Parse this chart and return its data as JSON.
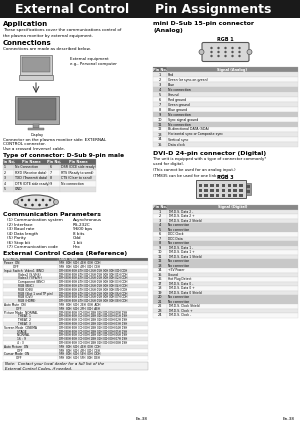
{
  "title_left": "External Control",
  "title_right": "Pin Assignments",
  "bg_color": "#ffffff",
  "header_bg": "#1a1a1a",
  "header_fg": "#ffffff",
  "app_title": "Application",
  "app_text": "These specifications cover the communications control of\nthe plasma monitor by external equipment.",
  "conn_title": "Connections",
  "conn_text": "Connections are made as described below.",
  "conn_label": "External equipment\ne.g., Personal computer",
  "display_label": "Display",
  "connector_note1": "Connector on the plasma monitor side: EXTERNAL",
  "connector_note2": "CONTROL connector.",
  "connector_note3": "Use a crossed (reverse) cable.",
  "connector_title": "Type of connector: D-Sub 9-pin male",
  "dsub_headers": [
    "Pin No.",
    "Pin Name",
    "Pin No.",
    "Pin Name"
  ],
  "dsub_rows": [
    [
      "1",
      "No Connection",
      "6",
      "DSR (DCE side ready)"
    ],
    [
      "2",
      "RXD (Receive data)",
      "7",
      "RTS (Ready to send)"
    ],
    [
      "3",
      "TXD (Transmit data)",
      "8",
      "CTS (Clear to send)"
    ],
    [
      "4",
      "DTR (DTE side ready)",
      "9",
      "No connection"
    ],
    [
      "5",
      "GND",
      "",
      ""
    ]
  ],
  "comm_title": "Communication Parameters",
  "comm_params": [
    [
      "(1) Communication system",
      "Asynchronous"
    ],
    [
      "(2) Interface",
      "RS-232C"
    ],
    [
      "(3) Baud rate",
      "9600 bps"
    ],
    [
      "(4) Data length",
      "8 bits"
    ],
    [
      "(5) Parity",
      "Odd"
    ],
    [
      "(6) Stop bit",
      "1 bit"
    ],
    [
      "(7) Communication code",
      "Hex"
    ]
  ],
  "ext_codes_title": "External Control Codes (Reference)",
  "ext_codes_rows": [
    [
      "FUNCTION",
      "CODE  DATA",
      true
    ],
    [
      "Power  ON",
      "9FH  80H  60H  4EH  00H  CDH",
      false
    ],
    [
      "         OFF",
      "9FH  80H  60H  4FH  00H  CEH",
      false
    ],
    [
      "Input Switch  Video1 (BNC)",
      "DFH 80H 60H 47H 00H 26H 01H 00H 00H 00H CDH",
      false
    ],
    [
      "              Video2 (S-VHS)",
      "DFH 80H 60H 47H 00H 26H 01H 00H 00H 01H CDH",
      false
    ],
    [
      "              Video3 (Y/Pb/Pr)",
      "DFH 80H 60H 47H 00H 26H 01H 00H 00H 02H CDH",
      false
    ],
    [
      "              Component (BNC)",
      "DFH 80H 60H 47H 00H 26H 01H 00H 00H 03H CDH",
      false
    ],
    [
      "              RGB (BNC)",
      "DFH 80H 60H 47H 00H 26H 01H 00H 00H 04H CDH",
      false
    ],
    [
      "              RGB (DIN)",
      "DFH 80H 60H 47H 00H 26H 01H 00H 00H 05H CDH",
      false
    ],
    [
      "              RGB (Slot 1 and TP pin)",
      "DFH 80H 60H 47H 00H 26H 01H 00H 00H 06H CDH",
      false
    ],
    [
      "              RGB (DVI)",
      "DFH 80H 60H 47H 00H 26H 01H 00H 00H 07H CDH",
      false
    ],
    [
      "              RGB (HDMI)",
      "DFH 80H 60H 47H 00H 26H 01H 00H 00H 08H CDH",
      false
    ],
    [
      "Auto Mute  ON",
      "9FH  80H  60H  2EH  00H  ADH",
      false
    ],
    [
      "            OFF",
      "9FH  80H  60H  2FH  00H  AEH",
      false
    ],
    [
      "Picture Mode  NORMAL",
      "DFH 80H 60H 3CH 00H 1BH 01H 00H 00H 00H 19H",
      false
    ],
    [
      "              THEAT. 1",
      "DFH 80H 60H 3CH 00H 1BH 01H 00H 00H 01H 19H",
      false
    ],
    [
      "              THEAT. 2",
      "DFH 80H 60H 3CH 00H 1BH 01H 00H 00H 02H 19H",
      false
    ],
    [
      "              THEAT. 3",
      "DFH 80H 60H 3CH 00H 1BH 01H 00H 00H 03H 19H",
      false
    ],
    [
      "Screen Mode  CINEMA",
      "DFH 80H 60H 3CH 00H 1BH 01H 00H 00H 04H 19H",
      false
    ],
    [
      "             STAGE",
      "DFH 80H 60H 3CH 00H 1BH 01H 00H 00H 05H 19H",
      false
    ],
    [
      "             NORMAL",
      "DFH 80H 60H 3CH 00H 1BH 01H 00H 00H 06H 19H",
      false
    ],
    [
      "             16 : 9",
      "DFH 80H 60H 3CH 00H 1BH 01H 00H 00H 07H 19H",
      false
    ],
    [
      "             4 : 3",
      "DFH 80H 60H 3CH 00H 1BH 01H 00H 00H 08H 19H",
      false
    ],
    [
      "Auto Picture  ON",
      "9FH  80H  60H  4EH  00H  CDH",
      false
    ],
    [
      "             OFF",
      "9FH  80H  60H  4FH  00H  CEH",
      false
    ],
    [
      "Cursor Mode  ON",
      "9FH  80H  60H  5EH  00H  DDH",
      false
    ],
    [
      "            OFF",
      "9FH  80H  60H  5FH  00H  DEH",
      false
    ]
  ],
  "note_text": "Note:  Contact your local dealer for a full list of the\nExternal Control Codes, if needed.",
  "mini_dsub_title": "mini D-Sub 15-pin connector\n(Analog)",
  "rgb1_label": "RGB 1",
  "analog_headers": [
    "Pin No.",
    "Signal (Analog)"
  ],
  "analog_rows": [
    [
      "1",
      "Red",
      false
    ],
    [
      "2",
      "Green (or sync-on-green)",
      false
    ],
    [
      "3",
      "Blue",
      false
    ],
    [
      "4",
      "No connection",
      true
    ],
    [
      "5",
      "Ground",
      false
    ],
    [
      "6",
      "Red ground",
      false
    ],
    [
      "7",
      "Green ground",
      false
    ],
    [
      "8",
      "Blue ground",
      false
    ],
    [
      "9",
      "No connection",
      true
    ],
    [
      "10",
      "Sync signal ground",
      false
    ],
    [
      "11",
      "No connection",
      true
    ],
    [
      "12",
      "Bi-directional DATA (SDA)",
      false
    ],
    [
      "13",
      "Horizontal sync or Composite sync",
      false
    ],
    [
      "14",
      "Vertical sync",
      false
    ],
    [
      "15",
      "Data clock",
      false
    ]
  ],
  "dvi_title": "DVI-D 24-pin connector (Digital)",
  "dvi_text": "The unit is equipped with a type of connector commonly*\nused for digital.\n(This cannot be used for an analog input.)\n(TM835 can be used for one link only.)",
  "rgb3_label": "RGB 3",
  "digital_headers": [
    "Pin No.",
    "Signal (Digital)"
  ],
  "digital_rows": [
    [
      "1",
      "T.M.D.S. Data 2 -",
      false
    ],
    [
      "2",
      "T.M.D.S. Data 2 +",
      false
    ],
    [
      "3",
      "T.M.D.S. Data 2 Shield",
      false
    ],
    [
      "4",
      "No connection",
      true
    ],
    [
      "5",
      "No connection",
      true
    ],
    [
      "6",
      "DDC Clock",
      false
    ],
    [
      "7",
      "DDC Data",
      false
    ],
    [
      "8",
      "No connection",
      true
    ],
    [
      "9",
      "T.M.D.S. Data 1 -",
      false
    ],
    [
      "10",
      "T.M.D.S. Data 1 +",
      false
    ],
    [
      "11",
      "T.M.D.S. Data 1 Shield",
      false
    ],
    [
      "12",
      "No connection",
      true
    ],
    [
      "13",
      "No connection",
      true
    ],
    [
      "14",
      "+5V Power",
      false
    ],
    [
      "15",
      "Ground",
      false
    ],
    [
      "16",
      "Hot Plug Detect",
      false
    ],
    [
      "17",
      "T.M.D.S. Data 0 -",
      false
    ],
    [
      "18",
      "T.M.D.S. Data 0 +",
      false
    ],
    [
      "19",
      "T.M.D.S. Data 0 Shield",
      false
    ],
    [
      "20",
      "No connection",
      true
    ],
    [
      "21",
      "No connection",
      true
    ],
    [
      "22",
      "T.M.D.S. Clock Shield",
      false
    ],
    [
      "23",
      "T.M.D.S. Clock +",
      false
    ],
    [
      "24",
      "T.M.D.S. Clock -",
      false
    ]
  ],
  "page_num": "En-38"
}
